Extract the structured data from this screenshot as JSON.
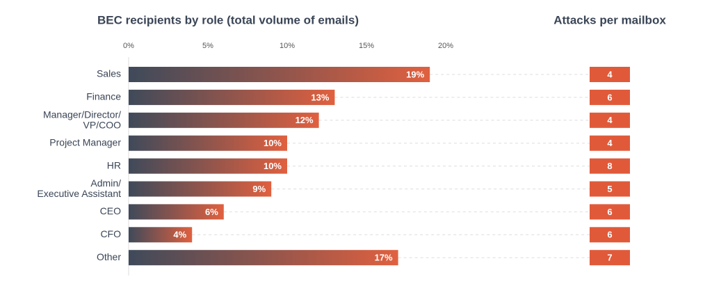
{
  "chart_data": {
    "type": "bar",
    "orientation": "horizontal",
    "title": "BEC recipients by role (total volume of emails)",
    "categories": [
      "Sales",
      "Finance",
      "Manager/Director/\nVP/COO",
      "Project Manager",
      "HR",
      "Admin/\nExecutive Assistant",
      "CEO",
      "CFO",
      "Other"
    ],
    "values": [
      19,
      13,
      12,
      10,
      10,
      9,
      6,
      4,
      17
    ],
    "value_labels": [
      "19%",
      "13%",
      "12%",
      "10%",
      "10%",
      "9%",
      "6%",
      "4%",
      "17%"
    ],
    "color": "#e0603f",
    "xlim": [
      0,
      20
    ],
    "xticks": [
      {
        "value": 0,
        "label": "0%"
      },
      {
        "value": 5,
        "label": "5%"
      },
      {
        "value": 10,
        "label": "10%"
      },
      {
        "value": 15,
        "label": "15%"
      },
      {
        "value": 20,
        "label": "20%"
      }
    ],
    "attacks": {
      "title": "Attacks per mailbox",
      "color": "#e05a3a",
      "values": [
        4,
        6,
        4,
        4,
        8,
        5,
        6,
        6,
        7
      ]
    }
  }
}
